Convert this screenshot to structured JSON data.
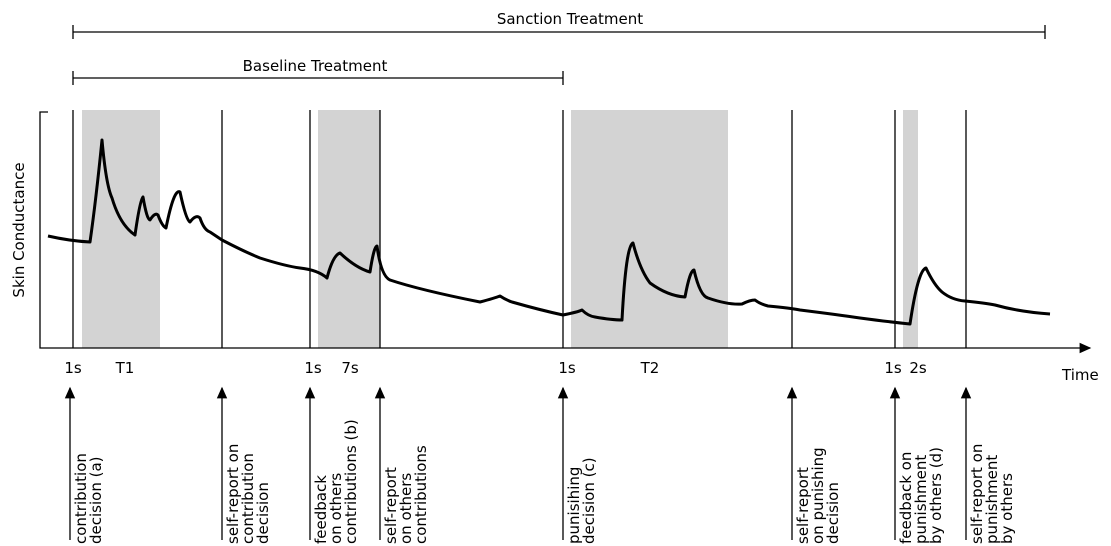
{
  "header": {
    "sanction": "Sanction Treatment",
    "baseline": "Baseline Treatment"
  },
  "axes": {
    "y_label": "Skin Conductance",
    "x_label": "Time"
  },
  "time_labels": [
    "1s",
    "T1",
    "1s",
    "7s",
    "1s",
    "T2",
    "1s",
    "2s"
  ],
  "events": [
    {
      "lines": [
        "contribution",
        "decision (a)"
      ]
    },
    {
      "lines": [
        "self-report on",
        "contribution",
        "decision"
      ]
    },
    {
      "lines": [
        "feedback",
        "on others",
        "contributions (b)"
      ]
    },
    {
      "lines": [
        "self-report",
        "on others",
        "contributions"
      ]
    },
    {
      "lines": [
        "punisihing",
        "decision (c)"
      ]
    },
    {
      "lines": [
        "self-report",
        "on punishing",
        "decision"
      ]
    },
    {
      "lines": [
        "feedback on",
        "punishment",
        "by others (d)"
      ]
    },
    {
      "lines": [
        "self-report on",
        "punishment",
        "by others"
      ]
    }
  ]
}
